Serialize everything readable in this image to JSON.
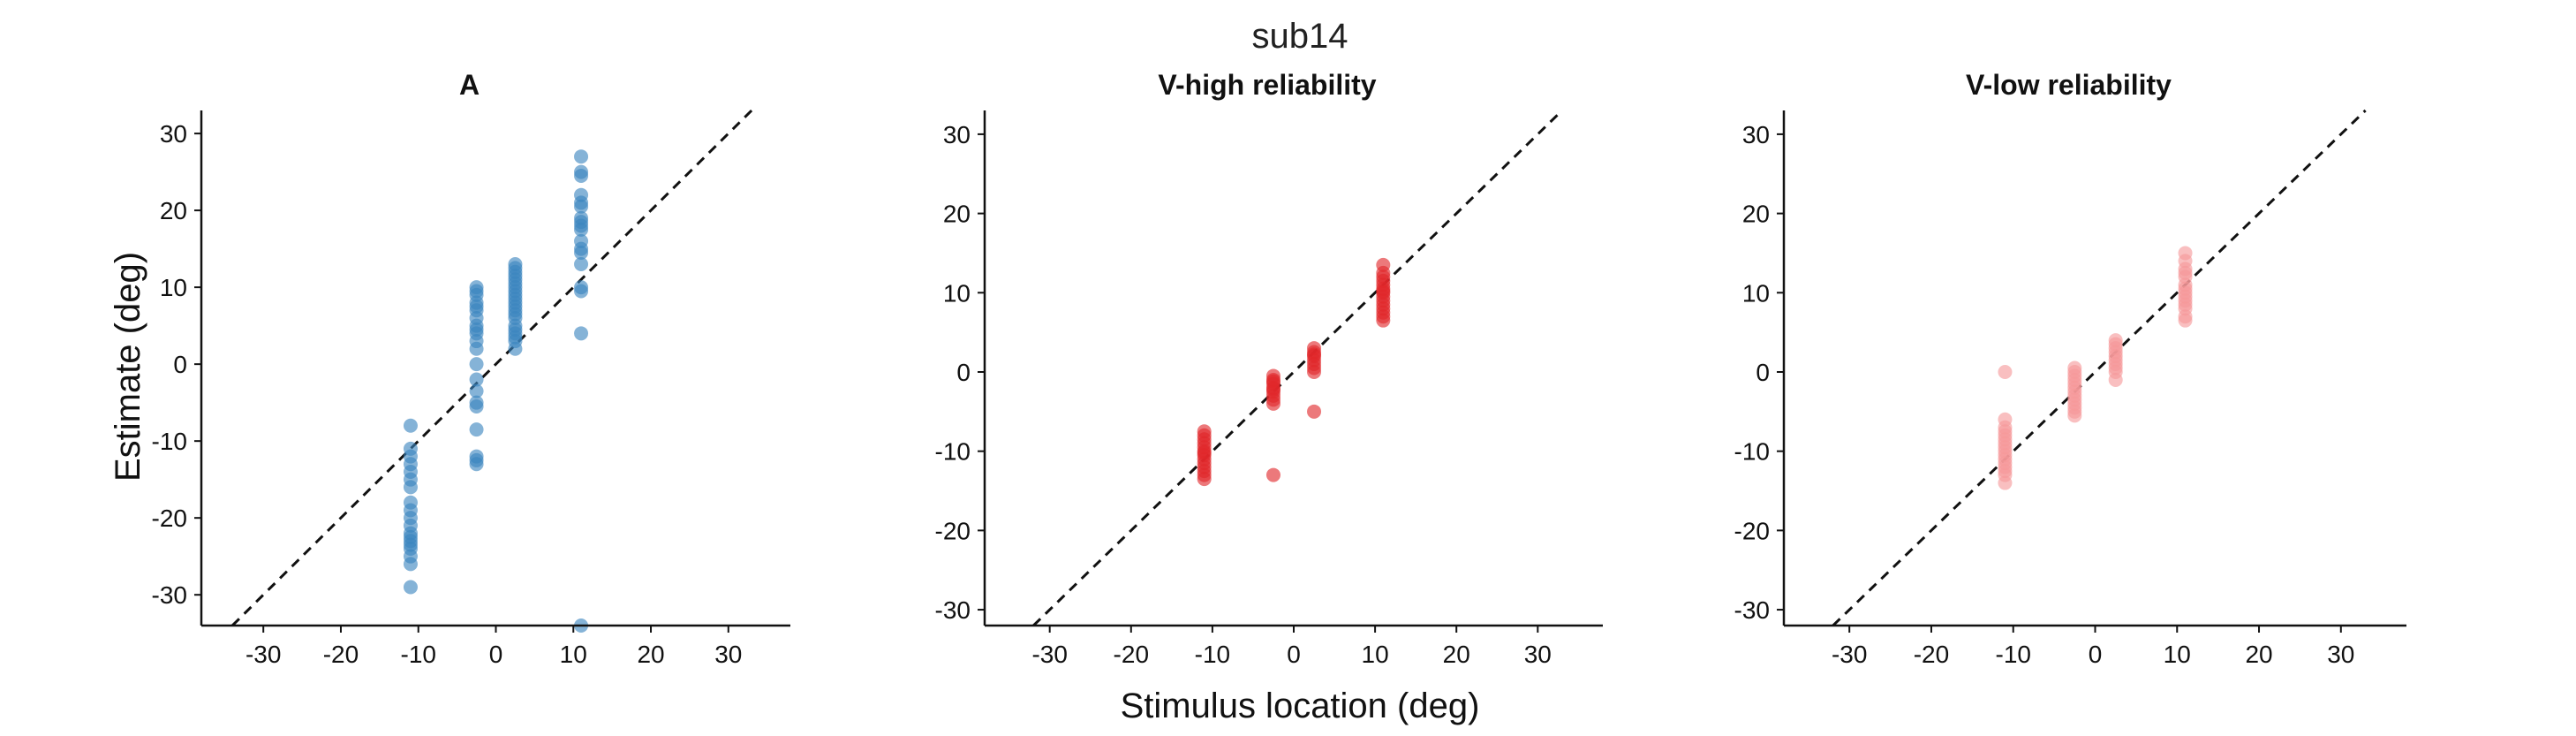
{
  "suptitle": "sub14",
  "xlabel": "Stimulus location (deg)",
  "ylabel": "Estimate (deg)",
  "colors": {
    "A": "#3a85bf",
    "V-high": "#e0262a",
    "V-low": "#f5979a"
  },
  "chart_data": [
    {
      "type": "scatter",
      "title": "A",
      "color": "#3a85bf",
      "xlim": [
        -38,
        38
      ],
      "ylim": [
        -34,
        33
      ],
      "xticks": [
        -30,
        -20,
        -10,
        0,
        10,
        20,
        30
      ],
      "yticks": [
        -30,
        -20,
        -10,
        0,
        10,
        20,
        30
      ],
      "grid": false,
      "identity_line": true,
      "x": [
        -11,
        -11,
        -11,
        -11,
        -11,
        -11,
        -11,
        -11,
        -11,
        -11,
        -11,
        -11,
        -11,
        -11,
        -11,
        -11,
        -11,
        -11,
        -11,
        -2.5,
        -2.5,
        -2.5,
        -2.5,
        -2.5,
        -2.5,
        -2.5,
        -2.5,
        -2.5,
        -2.5,
        -2.5,
        -2.5,
        -2.5,
        -2.5,
        -2.5,
        -2.5,
        -2.5,
        -2.5,
        -2.5,
        -2.5,
        -2.5,
        2.5,
        2.5,
        2.5,
        2.5,
        2.5,
        2.5,
        2.5,
        2.5,
        2.5,
        2.5,
        2.5,
        2.5,
        2.5,
        2.5,
        2.5,
        2.5,
        2.5,
        2.5,
        2.5,
        2.5,
        2.5,
        11,
        11,
        11,
        11,
        11,
        11,
        11,
        11,
        11,
        11,
        11,
        11,
        11,
        11,
        11,
        11,
        11,
        11
      ],
      "y": [
        -8,
        -12,
        -13,
        -14,
        -15,
        -16,
        -18,
        -19,
        -20,
        -21,
        -22,
        -22.5,
        -23,
        -23.5,
        -24,
        -25,
        -26,
        -29,
        -11,
        10,
        9.5,
        9,
        8,
        7,
        6,
        5,
        4,
        3,
        2,
        0,
        -2,
        -3.5,
        -5,
        -5.5,
        -8.5,
        -12,
        -12.5,
        -13,
        7.5,
        4.5,
        13,
        12,
        11.5,
        11,
        10.5,
        10,
        9.5,
        9,
        8.5,
        8,
        7,
        6.5,
        6,
        5,
        4.5,
        4,
        3.5,
        3,
        2,
        12.5,
        7.5,
        27,
        25,
        24.5,
        22,
        20.5,
        19,
        18.5,
        18,
        17.5,
        15,
        14.5,
        13,
        10,
        9.5,
        4,
        -34,
        16,
        21
      ]
    },
    {
      "type": "scatter",
      "title": "V-high reliability",
      "color": "#e0262a",
      "xlim": [
        -38,
        38
      ],
      "ylim": [
        -32,
        33
      ],
      "xticks": [
        -30,
        -20,
        -10,
        0,
        10,
        20,
        30
      ],
      "yticks": [
        -30,
        -20,
        -10,
        0,
        10,
        20,
        30
      ],
      "grid": false,
      "identity_line": true,
      "x": [
        -11,
        -11,
        -11,
        -11,
        -11,
        -11,
        -11,
        -11,
        -11,
        -11,
        -11,
        -11,
        -11,
        -11,
        -2.5,
        -2.5,
        -2.5,
        -2.5,
        -2.5,
        -2.5,
        -2.5,
        -2.5,
        -2.5,
        -2.5,
        -2.5,
        2.5,
        2.5,
        2.5,
        2.5,
        2.5,
        2.5,
        2.5,
        2.5,
        2.5,
        11,
        11,
        11,
        11,
        11,
        11,
        11,
        11,
        11,
        11,
        11,
        11,
        11,
        11,
        11
      ],
      "y": [
        -7.5,
        -8,
        -8.5,
        -9,
        -9.5,
        -10,
        -10.5,
        -11,
        -11.5,
        -12,
        -12.5,
        -13,
        -13.5,
        -10.2,
        -0.5,
        -1,
        -1.5,
        -2,
        -2.5,
        -3,
        -3.5,
        -4,
        -1.2,
        -2.2,
        -13,
        3,
        2.5,
        2,
        1.5,
        1,
        0.5,
        0,
        -5,
        2.2,
        13.5,
        12.5,
        12,
        11,
        10.5,
        10,
        9.5,
        9,
        8.5,
        8,
        7.5,
        7,
        6.5,
        11.5,
        10.2
      ]
    },
    {
      "type": "scatter",
      "title": "V-low reliability",
      "color": "#f5979a",
      "xlim": [
        -38,
        38
      ],
      "ylim": [
        -32,
        33
      ],
      "xticks": [
        -30,
        -20,
        -10,
        0,
        10,
        20,
        30
      ],
      "yticks": [
        -30,
        -20,
        -10,
        0,
        10,
        20,
        30
      ],
      "grid": false,
      "identity_line": true,
      "x": [
        -11,
        -11,
        -11,
        -11,
        -11,
        -11,
        -11,
        -11,
        -11,
        -11,
        -11,
        -11,
        -11,
        -11,
        -11,
        -11,
        -2.5,
        -2.5,
        -2.5,
        -2.5,
        -2.5,
        -2.5,
        -2.5,
        -2.5,
        -2.5,
        -2.5,
        -2.5,
        -2.5,
        -2.5,
        2.5,
        2.5,
        2.5,
        2.5,
        2.5,
        2.5,
        2.5,
        2.5,
        2.5,
        2.5,
        11,
        11,
        11,
        11,
        11,
        11,
        11,
        11,
        11,
        11,
        11,
        11,
        11,
        11
      ],
      "y": [
        0,
        -6,
        -7,
        -8,
        -8.5,
        -9,
        -9.5,
        -10,
        -10.5,
        -11,
        -11.5,
        -12,
        -12.5,
        -13,
        -14,
        -7.5,
        0.5,
        0,
        -0.5,
        -1,
        -1.5,
        -2,
        -2.5,
        -3,
        -3.5,
        -4,
        -4.5,
        -5,
        -5.5,
        4,
        3.5,
        3,
        2.5,
        2,
        1.5,
        1,
        0.5,
        0,
        -1,
        15,
        14,
        13,
        12.5,
        12,
        11,
        10.5,
        10,
        9.5,
        9,
        8.5,
        8,
        7,
        6.5
      ]
    }
  ]
}
